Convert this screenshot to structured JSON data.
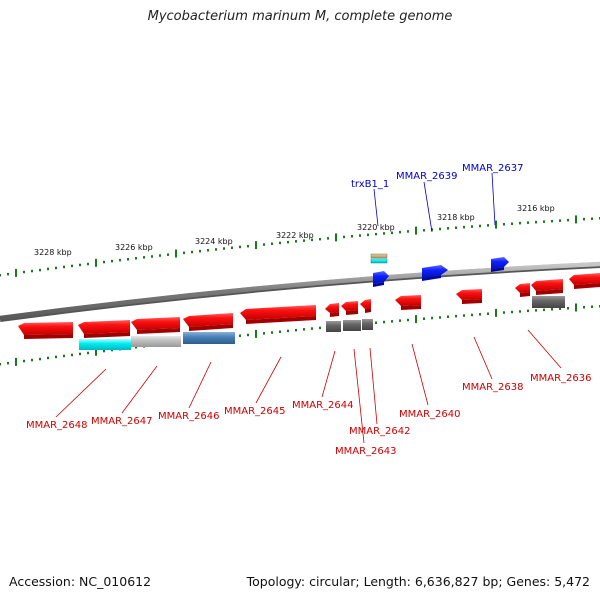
{
  "title": "Mycobacterium marinum M, complete genome",
  "footer": {
    "accession": "Accession: NC_010612",
    "topology": "Topology: circular; Length: 6,636,827 bp; Genes: 5,472"
  },
  "scale_labels": [
    "3228 kbp",
    "3226 kbp",
    "3224 kbp",
    "3222 kbp",
    "3220 kbp",
    "3218 kbp",
    "3216 kbp"
  ],
  "top_genes": [
    "trxB1_1",
    "MMAR_2639",
    "MMAR_2637"
  ],
  "bottom_genes": [
    "MMAR_2648",
    "MMAR_2647",
    "MMAR_2646",
    "MMAR_2645",
    "MMAR_2644",
    "MMAR_2643",
    "MMAR_2642",
    "MMAR_2640",
    "MMAR_2638",
    "MMAR_2636"
  ],
  "colors": {
    "forward_label": "#0000cc",
    "reverse_label": "#cc0000",
    "gene_red": "#ff1010",
    "gene_blue": "#1020ff",
    "backbone": "#8a8a8a",
    "tick": "#1a7a1a"
  }
}
